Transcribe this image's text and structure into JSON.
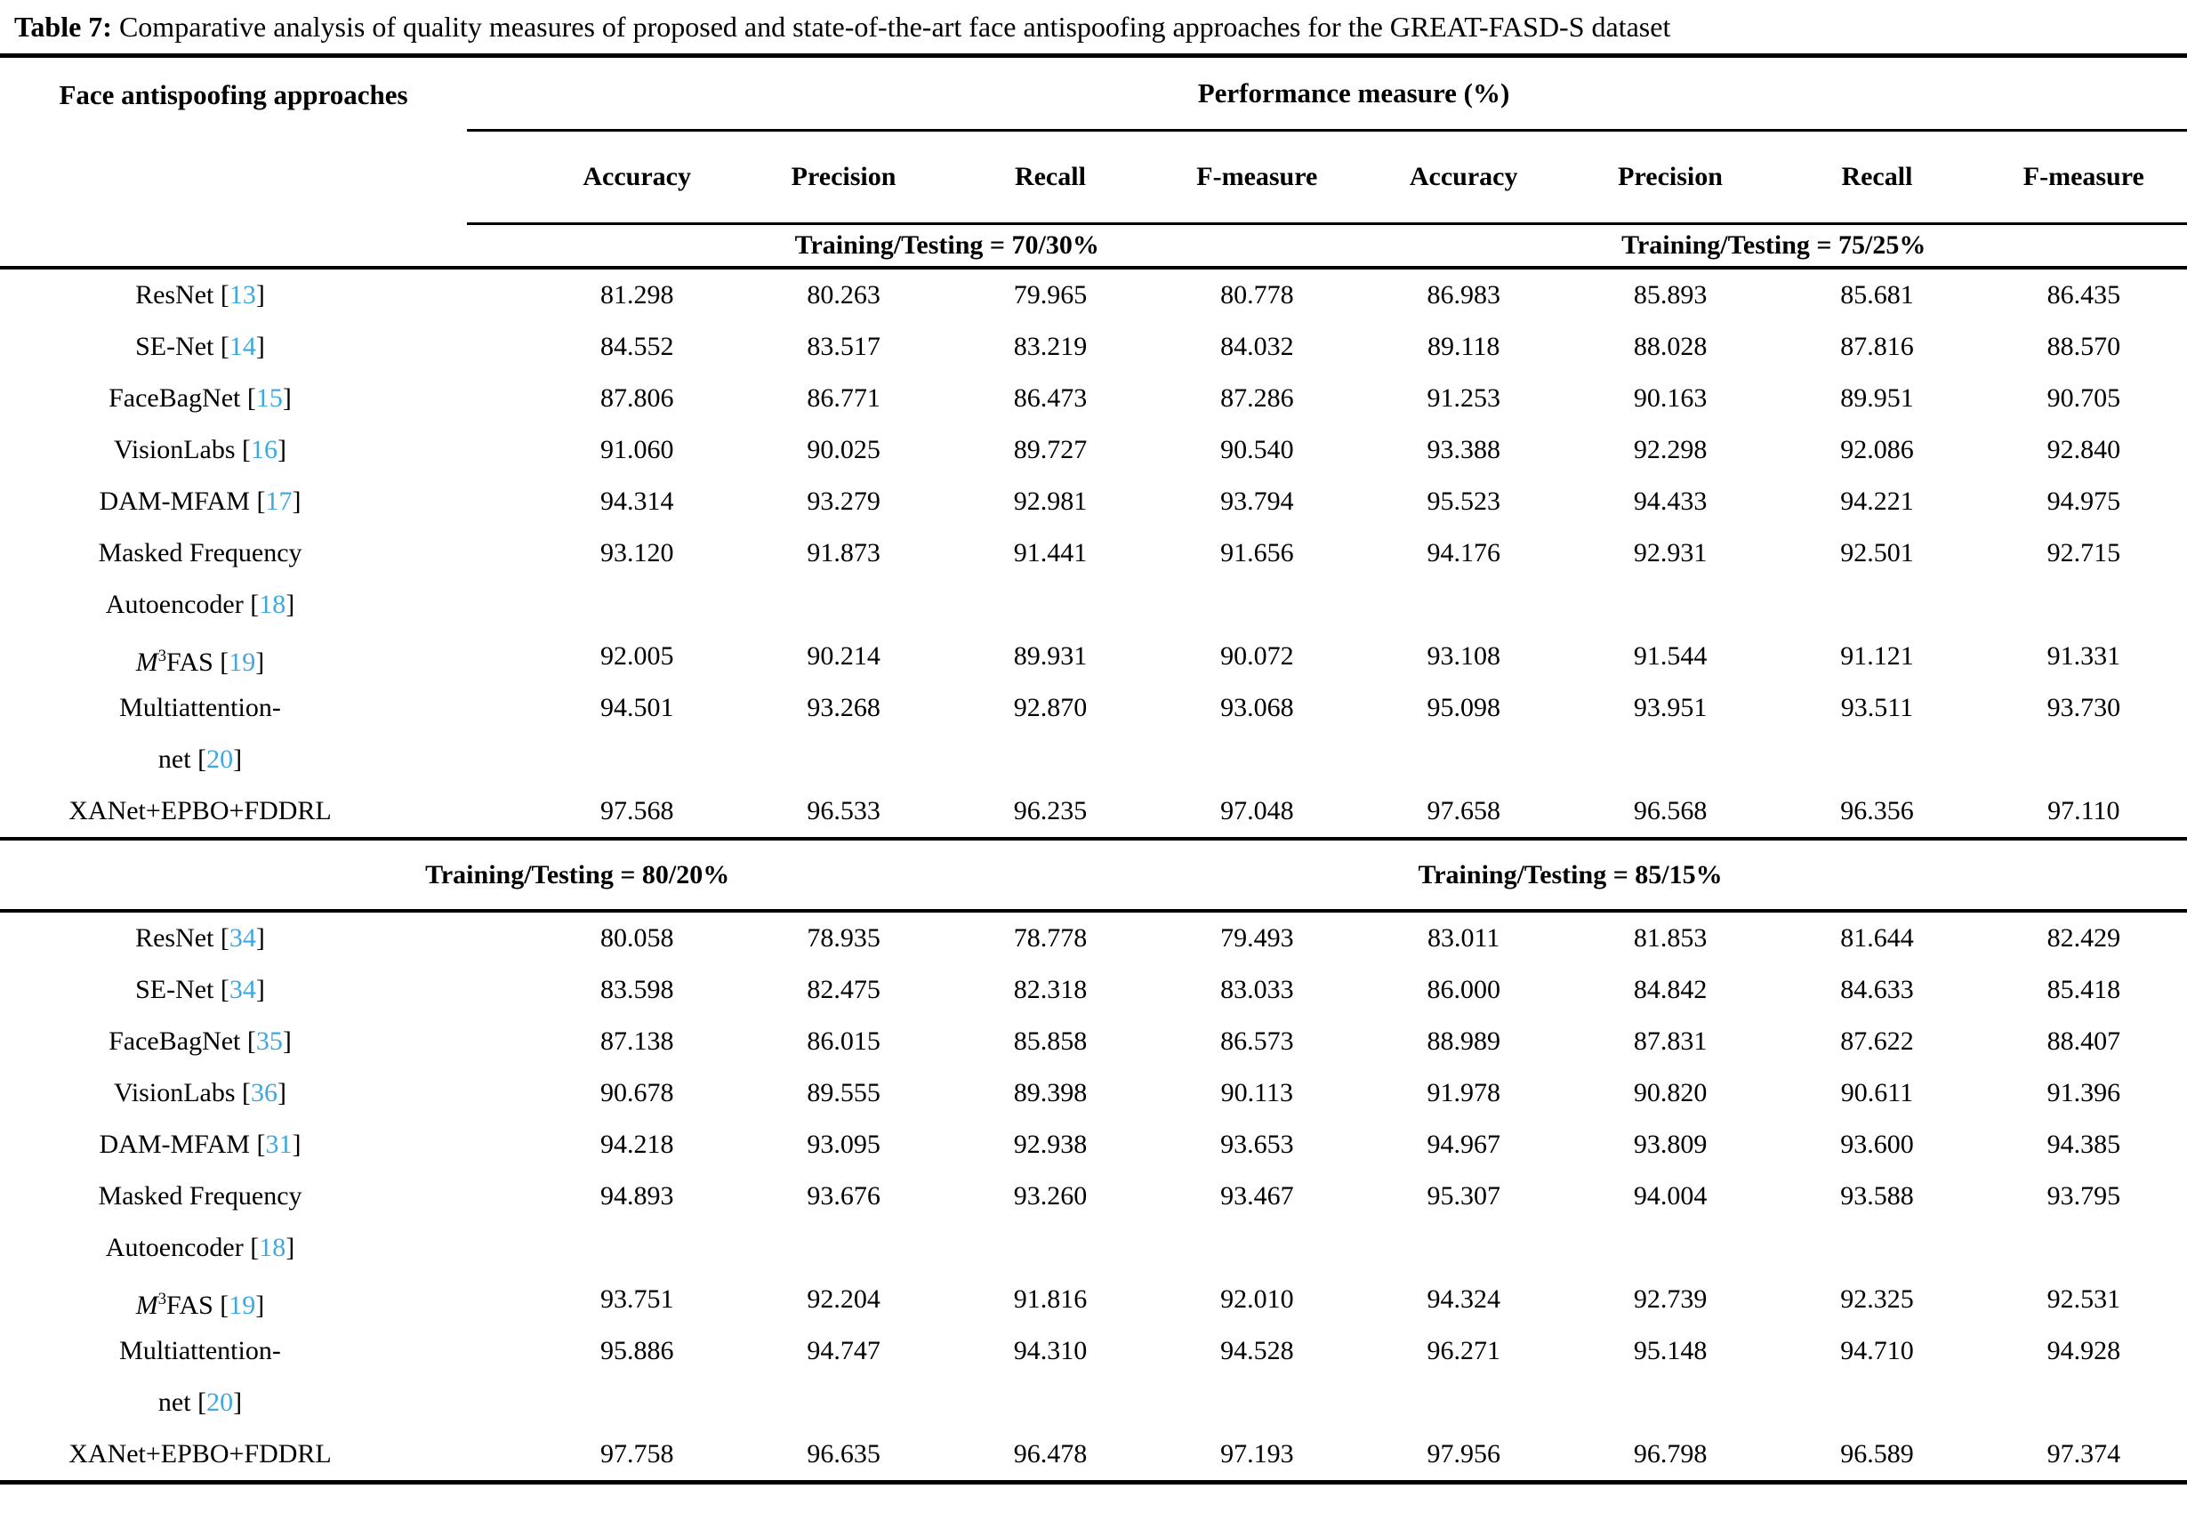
{
  "title": {
    "label": "Table 7:",
    "text": "Comparative analysis of quality measures of proposed and state-of-the-art face antispoofing approaches for the GREAT-FASD-S dataset"
  },
  "header": {
    "row_group_label": "Face antispoofing approaches",
    "perf_label": "Performance measure (%)",
    "columns": [
      "Accuracy",
      "Precision",
      "Recall",
      "F-measure",
      "Accuracy",
      "Precision",
      "Recall",
      "F-measure"
    ]
  },
  "punct": {
    "open": " [",
    "close": "]"
  },
  "citation_color": "#3FA9DC",
  "sections": [
    {
      "split_left": "Training/Testing = 70/30%",
      "split_right": "Training/Testing = 75/25%",
      "rows": [
        {
          "lines": [
            {
              "text": "ResNet",
              "cite": "13"
            }
          ],
          "values": [
            "81.298",
            "80.263",
            "79.965",
            "80.778",
            "86.983",
            "85.893",
            "85.681",
            "86.435"
          ]
        },
        {
          "lines": [
            {
              "text": "SE-Net",
              "cite": "14"
            }
          ],
          "values": [
            "84.552",
            "83.517",
            "83.219",
            "84.032",
            "89.118",
            "88.028",
            "87.816",
            "88.570"
          ]
        },
        {
          "lines": [
            {
              "text": "FaceBagNet",
              "cite": "15"
            }
          ],
          "values": [
            "87.806",
            "86.771",
            "86.473",
            "87.286",
            "91.253",
            "90.163",
            "89.951",
            "90.705"
          ]
        },
        {
          "lines": [
            {
              "text": "VisionLabs",
              "cite": "16"
            }
          ],
          "values": [
            "91.060",
            "90.025",
            "89.727",
            "90.540",
            "93.388",
            "92.298",
            "92.086",
            "92.840"
          ]
        },
        {
          "lines": [
            {
              "text": "DAM-MFAM",
              "cite": "17"
            }
          ],
          "values": [
            "94.314",
            "93.279",
            "92.981",
            "93.794",
            "95.523",
            "94.433",
            "94.221",
            "94.975"
          ]
        },
        {
          "lines": [
            {
              "text": "Masked Frequency"
            },
            {
              "text": "Autoencoder",
              "cite": "18"
            }
          ],
          "values": [
            "93.120",
            "91.873",
            "91.441",
            "91.656",
            "94.176",
            "92.931",
            "92.501",
            "92.715"
          ]
        },
        {
          "lines": [
            {
              "italic": "M",
              "sup": "3",
              "text": "FAS",
              "cite": "19"
            }
          ],
          "values": [
            "92.005",
            "90.214",
            "89.931",
            "90.072",
            "93.108",
            "91.544",
            "91.121",
            "91.331"
          ]
        },
        {
          "lines": [
            {
              "text": "Multiattention-"
            },
            {
              "text": "net",
              "cite": "20"
            }
          ],
          "values": [
            "94.501",
            "93.268",
            "92.870",
            "93.068",
            "95.098",
            "93.951",
            "93.511",
            "93.730"
          ]
        },
        {
          "lines": [
            {
              "text": "XANet+EPBO+FDDRL"
            }
          ],
          "values": [
            "97.568",
            "96.533",
            "96.235",
            "97.048",
            "97.658",
            "96.568",
            "96.356",
            "97.110"
          ]
        }
      ]
    },
    {
      "split_left": "Training/Testing = 80/20%",
      "split_right": "Training/Testing = 85/15%",
      "rows": [
        {
          "lines": [
            {
              "text": "ResNet",
              "cite": "34"
            }
          ],
          "values": [
            "80.058",
            "78.935",
            "78.778",
            "79.493",
            "83.011",
            "81.853",
            "81.644",
            "82.429"
          ]
        },
        {
          "lines": [
            {
              "text": "SE-Net",
              "cite": "34"
            }
          ],
          "values": [
            "83.598",
            "82.475",
            "82.318",
            "83.033",
            "86.000",
            "84.842",
            "84.633",
            "85.418"
          ]
        },
        {
          "lines": [
            {
              "text": "FaceBagNet",
              "cite": "35"
            }
          ],
          "values": [
            "87.138",
            "86.015",
            "85.858",
            "86.573",
            "88.989",
            "87.831",
            "87.622",
            "88.407"
          ]
        },
        {
          "lines": [
            {
              "text": "VisionLabs",
              "cite": "36"
            }
          ],
          "values": [
            "90.678",
            "89.555",
            "89.398",
            "90.113",
            "91.978",
            "90.820",
            "90.611",
            "91.396"
          ]
        },
        {
          "lines": [
            {
              "text": "DAM-MFAM",
              "cite": "31"
            }
          ],
          "values": [
            "94.218",
            "93.095",
            "92.938",
            "93.653",
            "94.967",
            "93.809",
            "93.600",
            "94.385"
          ]
        },
        {
          "lines": [
            {
              "text": "Masked Frequency"
            },
            {
              "text": "Autoencoder",
              "cite": "18"
            }
          ],
          "values": [
            "94.893",
            "93.676",
            "93.260",
            "93.467",
            "95.307",
            "94.004",
            "93.588",
            "93.795"
          ]
        },
        {
          "lines": [
            {
              "italic": "M",
              "sup": "3",
              "text": "FAS",
              "cite": "19"
            }
          ],
          "values": [
            "93.751",
            "92.204",
            "91.816",
            "92.010",
            "94.324",
            "92.739",
            "92.325",
            "92.531"
          ]
        },
        {
          "lines": [
            {
              "text": "Multiattention-"
            },
            {
              "text": "net",
              "cite": "20"
            }
          ],
          "values": [
            "95.886",
            "94.747",
            "94.310",
            "94.528",
            "96.271",
            "95.148",
            "94.710",
            "94.928"
          ]
        },
        {
          "lines": [
            {
              "text": "XANet+EPBO+FDDRL"
            }
          ],
          "values": [
            "97.758",
            "96.635",
            "96.478",
            "97.193",
            "97.956",
            "96.798",
            "96.589",
            "97.374"
          ]
        }
      ]
    }
  ]
}
